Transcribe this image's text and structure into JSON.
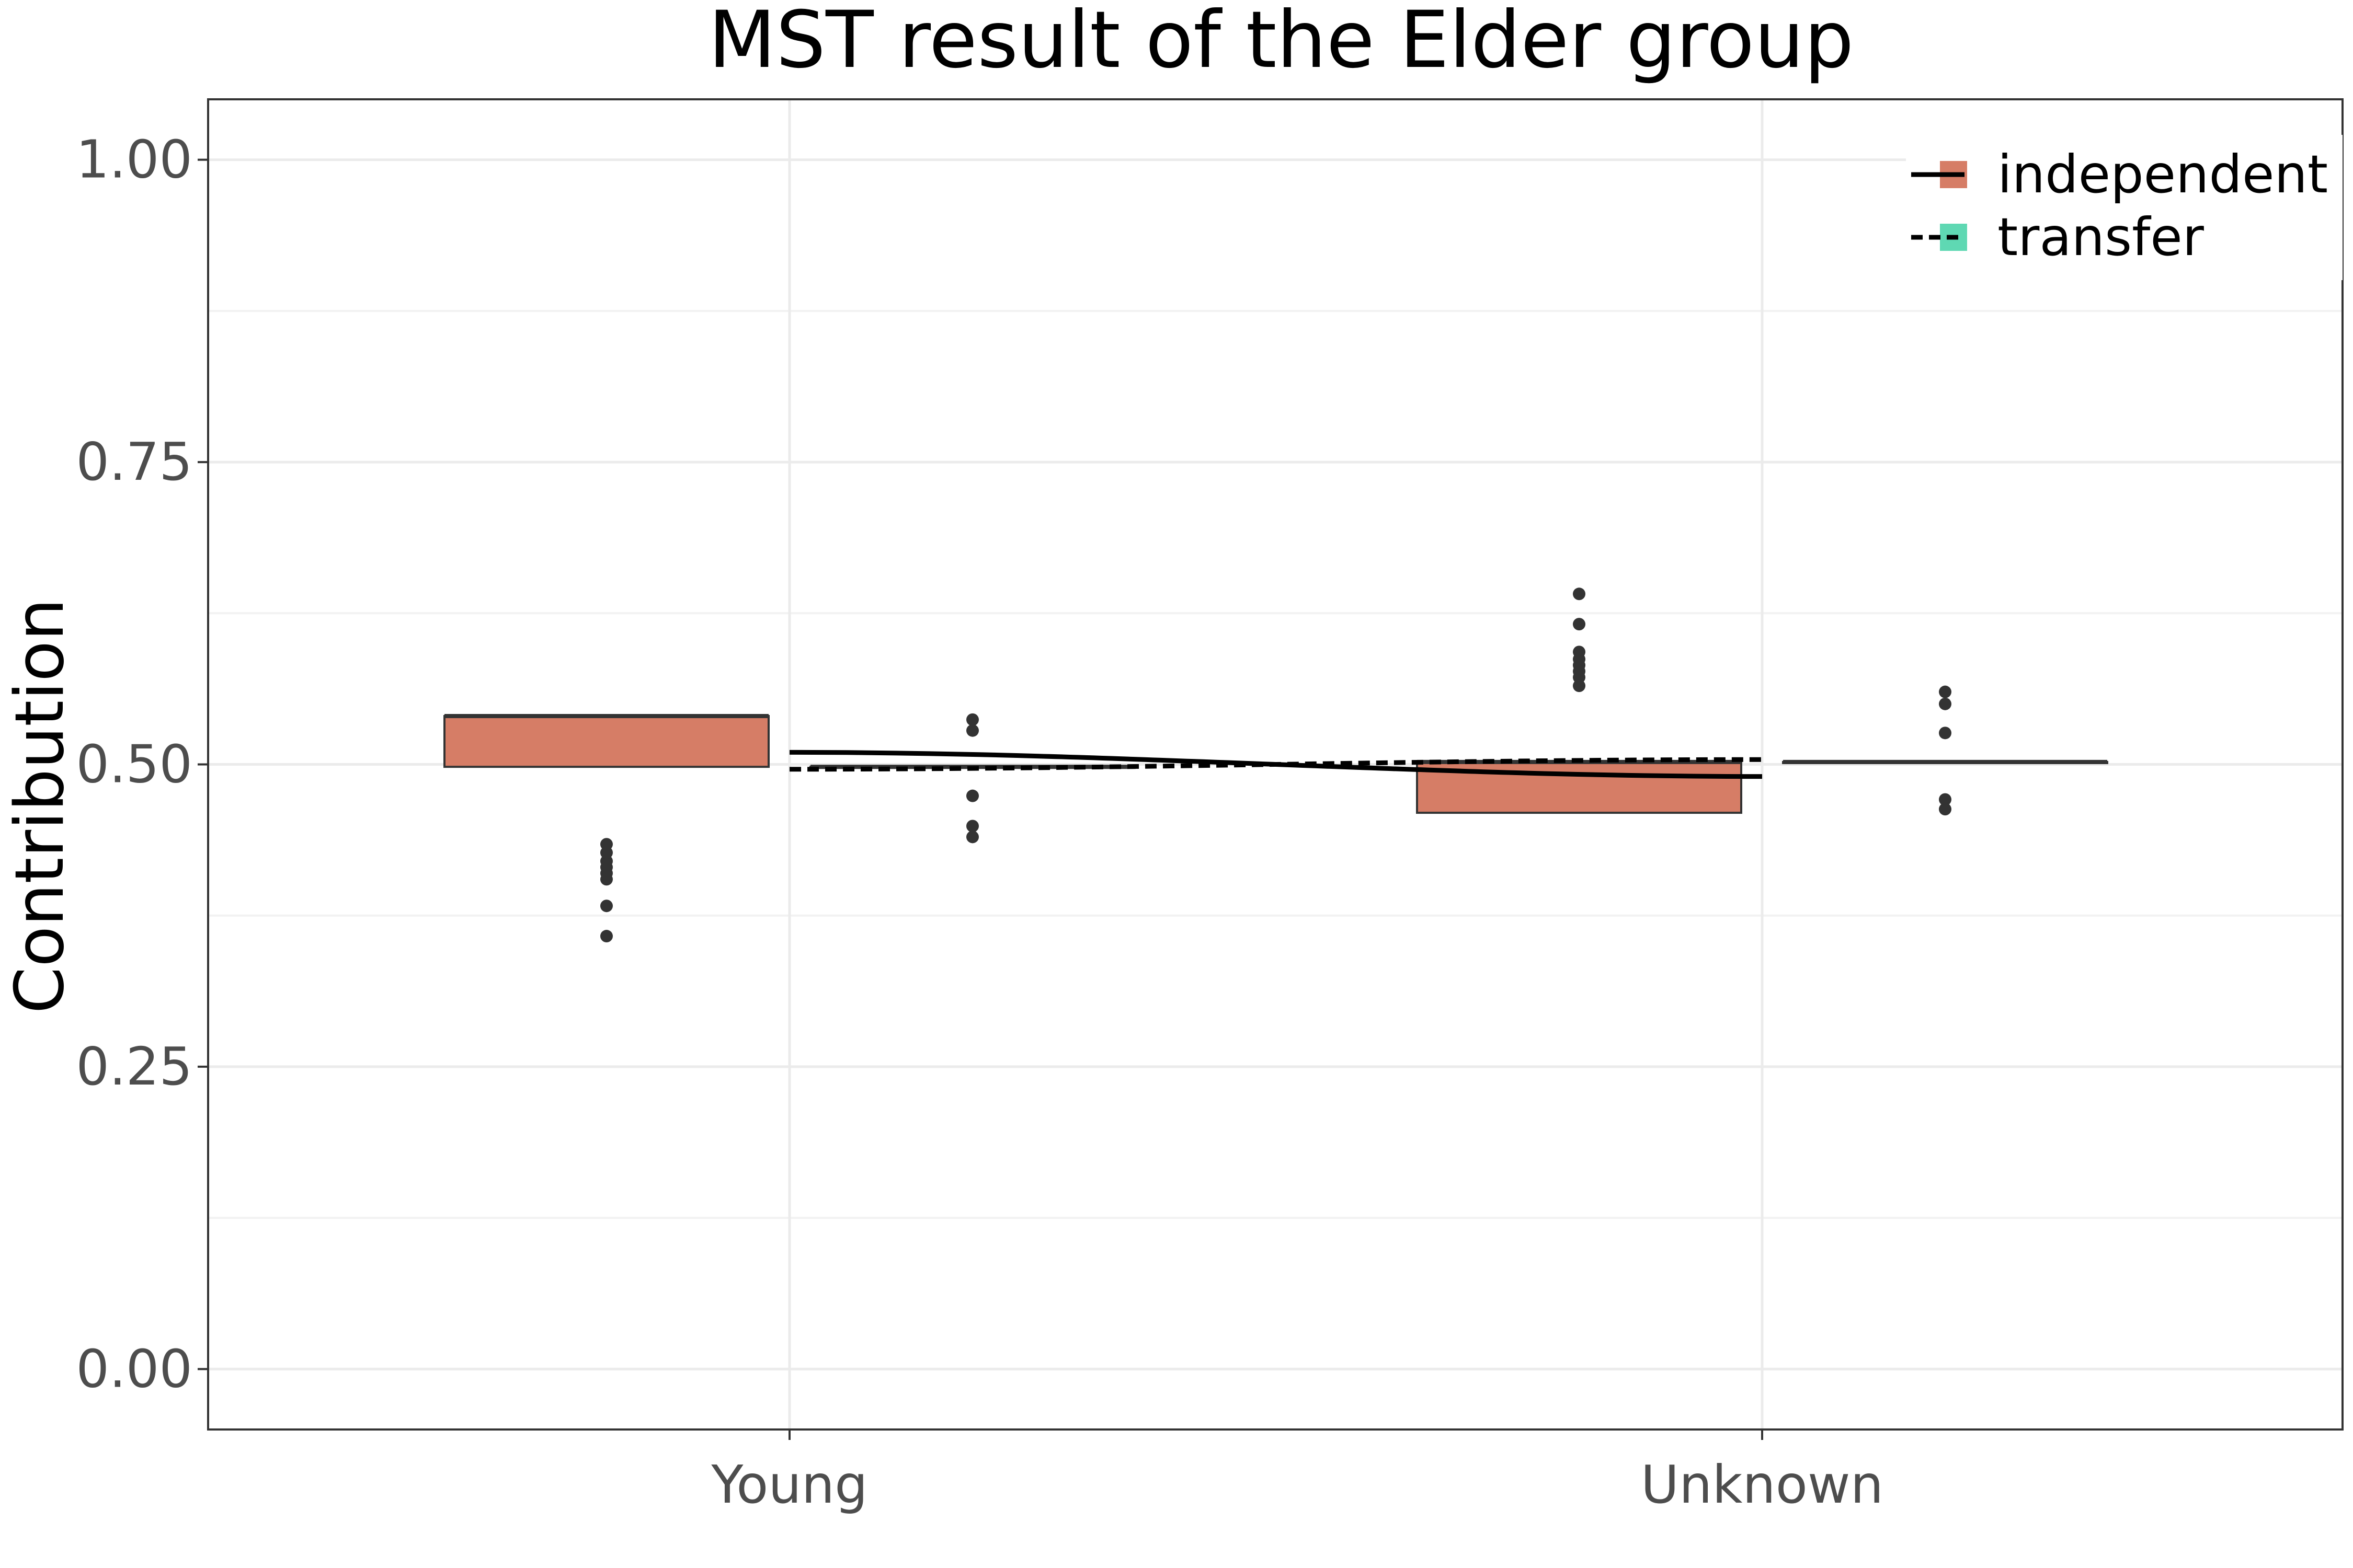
{
  "chart_data": {
    "type": "box",
    "title": "MST result of the Elder group",
    "xlabel": "",
    "ylabel": "Contribution",
    "categories": [
      "Young",
      "Unknown"
    ],
    "ylim": [
      -0.05,
      1.05
    ],
    "yticks": [
      0.0,
      0.25,
      0.5,
      0.75,
      1.0
    ],
    "ytick_labels": [
      "0.00",
      "0.25",
      "0.50",
      "0.75",
      "1.00"
    ],
    "grid": true,
    "legend_position": "top-right",
    "series": [
      {
        "name": "independent",
        "color": "#d67d66",
        "line_style": "solid",
        "boxes": [
          {
            "category": "Young",
            "q1": 0.498,
            "median": 0.54,
            "q3": 0.54,
            "whisker_low": 0.498,
            "whisker_high": 0.54,
            "outliers": [
              0.358,
              0.383,
              0.405,
              0.41,
              0.415,
              0.42,
              0.427,
              0.434
            ]
          },
          {
            "category": "Unknown",
            "q1": 0.46,
            "median": 0.502,
            "q3": 0.502,
            "whisker_low": 0.46,
            "whisker_high": 0.502,
            "outliers": [
              0.565,
              0.572,
              0.577,
              0.582,
              0.587,
              0.593,
              0.616,
              0.641
            ]
          }
        ],
        "trend": [
          {
            "category": "Young",
            "value": 0.51
          },
          {
            "category": "Unknown",
            "value": 0.49
          }
        ]
      },
      {
        "name": "transfer",
        "color": "#5fd8b3",
        "line_style": "dashed",
        "boxes": [
          {
            "category": "Young",
            "q1": 0.498,
            "median": 0.498,
            "q3": 0.498,
            "whisker_low": 0.498,
            "whisker_high": 0.498,
            "outliers": [
              0.44,
              0.449,
              0.474,
              0.528,
              0.537
            ]
          },
          {
            "category": "Unknown",
            "q1": 0.502,
            "median": 0.502,
            "q3": 0.502,
            "whisker_low": 0.502,
            "whisker_high": 0.502,
            "outliers": [
              0.463,
              0.471,
              0.526,
              0.55,
              0.56
            ]
          }
        ],
        "trend": [
          {
            "category": "Young",
            "value": 0.496
          },
          {
            "category": "Unknown",
            "value": 0.504
          }
        ]
      }
    ]
  }
}
